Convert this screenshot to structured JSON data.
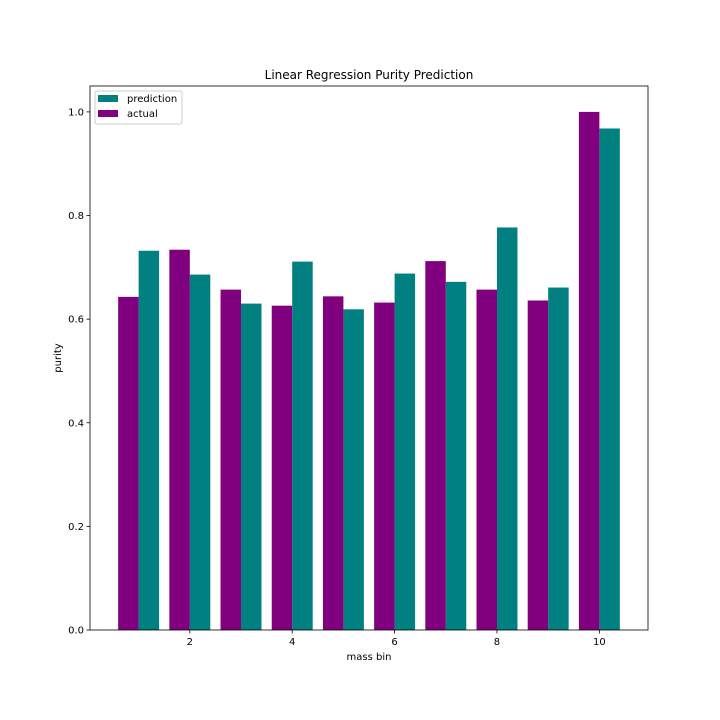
{
  "chart_data": {
    "type": "bar",
    "title": "Linear Regression Purity Prediction",
    "xlabel": "mass bin",
    "ylabel": "purity",
    "categories": [
      1,
      2,
      3,
      4,
      5,
      6,
      7,
      8,
      9,
      10
    ],
    "xlim": [
      0.05,
      10.95
    ],
    "ylim": [
      0.0,
      1.05
    ],
    "xticks": [
      2,
      4,
      6,
      8,
      10
    ],
    "yticks": [
      0.0,
      0.2,
      0.4,
      0.6,
      0.8,
      1.0
    ],
    "grid": false,
    "legend_position": "upper-left",
    "series": [
      {
        "name": "prediction",
        "color": "#008080",
        "offset": 0.2,
        "values": [
          0.732,
          0.686,
          0.63,
          0.711,
          0.619,
          0.688,
          0.672,
          0.777,
          0.661,
          0.968
        ]
      },
      {
        "name": "actual",
        "color": "#800080",
        "offset": -0.2,
        "values": [
          0.643,
          0.734,
          0.657,
          0.626,
          0.644,
          0.632,
          0.712,
          0.657,
          0.636,
          1.0
        ]
      }
    ],
    "bar_width": 0.4
  }
}
